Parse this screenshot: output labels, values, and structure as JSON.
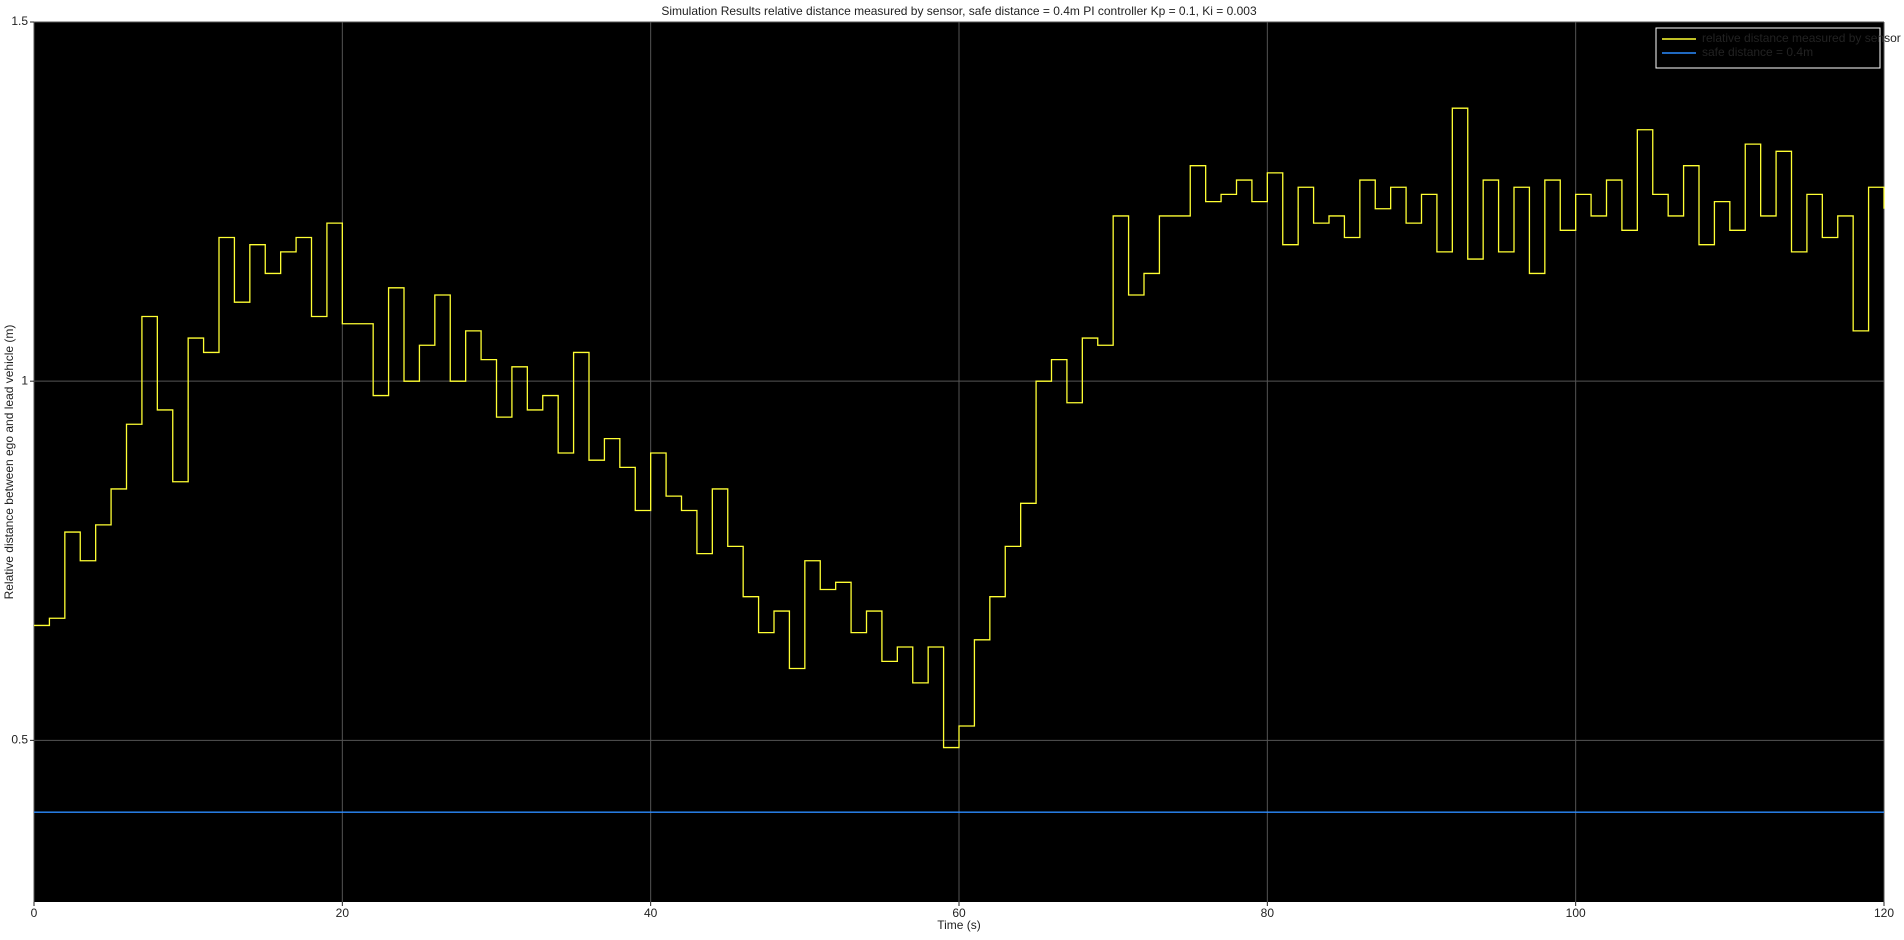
{
  "chart_data": {
    "type": "stairs",
    "title": "Simulation Results relative distance measured by sensor, safe distance = 0.4m PI controller Kp = 0.1, Ki = 0.003",
    "x_label": "Time (s)",
    "y_label": "Relative distance between ego and lead vehicle (m)",
    "series": [
      {
        "name": "relative distance measured by sensor",
        "color": "#ffff33",
        "x": [
          0,
          1,
          2,
          3,
          4,
          5,
          6,
          7,
          8,
          9,
          10,
          11,
          12,
          13,
          14,
          15,
          16,
          17,
          18,
          19,
          20,
          21,
          22,
          23,
          24,
          25,
          26,
          27,
          28,
          29,
          30,
          31,
          32,
          33,
          34,
          35,
          36,
          37,
          38,
          39,
          40,
          41,
          42,
          43,
          44,
          45,
          46,
          47,
          48,
          49,
          50,
          51,
          52,
          53,
          54,
          55,
          56,
          57,
          58,
          59,
          60,
          61,
          62,
          63,
          64,
          65,
          66,
          67,
          68,
          69,
          70,
          71,
          72,
          73,
          74,
          75,
          76,
          77,
          78,
          79,
          80,
          81,
          82,
          83,
          84,
          85,
          86,
          87,
          88,
          89,
          90,
          91,
          92,
          93,
          94,
          95,
          96,
          97,
          98,
          99,
          100,
          101,
          102,
          103,
          104,
          105,
          106,
          107,
          108,
          109,
          110,
          111,
          112,
          113,
          114,
          115,
          116,
          117,
          118,
          119,
          120
        ],
        "values": [
          0.66,
          0.67,
          0.79,
          0.75,
          0.8,
          0.85,
          0.94,
          1.09,
          0.96,
          0.86,
          1.06,
          1.04,
          1.2,
          1.11,
          1.19,
          1.15,
          1.18,
          1.2,
          1.09,
          1.22,
          1.08,
          1.08,
          0.98,
          1.13,
          1.0,
          1.05,
          1.12,
          1.0,
          1.07,
          1.03,
          0.95,
          1.02,
          0.96,
          0.98,
          0.9,
          1.04,
          0.89,
          0.92,
          0.88,
          0.82,
          0.9,
          0.84,
          0.82,
          0.76,
          0.85,
          0.77,
          0.7,
          0.65,
          0.68,
          0.6,
          0.75,
          0.71,
          0.72,
          0.65,
          0.68,
          0.61,
          0.63,
          0.58,
          0.63,
          0.49,
          0.52,
          0.64,
          0.7,
          0.77,
          0.83,
          1.0,
          1.03,
          0.97,
          1.06,
          1.05,
          1.23,
          1.12,
          1.15,
          1.23,
          1.23,
          1.3,
          1.25,
          1.26,
          1.28,
          1.25,
          1.29,
          1.19,
          1.27,
          1.22,
          1.23,
          1.2,
          1.28,
          1.24,
          1.27,
          1.22,
          1.26,
          1.18,
          1.38,
          1.17,
          1.28,
          1.18,
          1.27,
          1.15,
          1.28,
          1.21,
          1.26,
          1.23,
          1.28,
          1.21,
          1.35,
          1.26,
          1.23,
          1.3,
          1.19,
          1.25,
          1.21,
          1.33,
          1.23,
          1.32,
          1.18,
          1.26,
          1.2,
          1.23,
          1.07,
          1.27,
          1.24
        ]
      },
      {
        "name": "safe distance = 0.4m",
        "color": "#2b8cff",
        "x": [
          0,
          120
        ],
        "values": [
          0.4,
          0.4
        ]
      }
    ],
    "xlim": [
      0,
      120
    ],
    "xticks": [
      0,
      20,
      40,
      60,
      80,
      100,
      120
    ],
    "ylim": [
      0.275,
      1.5
    ],
    "yticks": [
      0.5,
      1,
      1.5
    ],
    "grid": true,
    "legend": "top-right"
  }
}
